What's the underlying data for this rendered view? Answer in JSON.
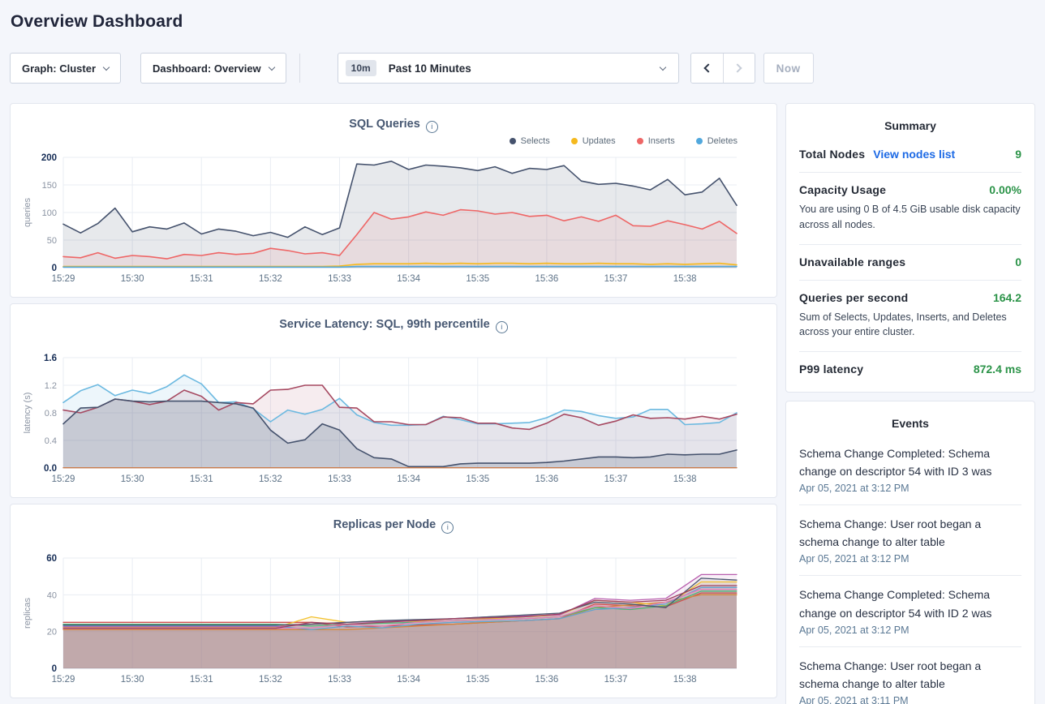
{
  "page": {
    "title": "Overview Dashboard"
  },
  "toolbar": {
    "graph_selector": "Graph: Cluster",
    "dashboard_selector": "Dashboard: Overview",
    "time_badge": "10m",
    "time_label": "Past 10 Minutes",
    "now_label": "Now"
  },
  "summary": {
    "title": "Summary",
    "rows": [
      {
        "label": "Total Nodes",
        "link": "View nodes list",
        "value": "9"
      },
      {
        "label": "Capacity Usage",
        "value": "0.00%",
        "desc": "You are using 0 B of 4.5 GiB usable disk capacity across all nodes."
      },
      {
        "label": "Unavailable ranges",
        "value": "0"
      },
      {
        "label": "Queries per second",
        "value": "164.2",
        "desc": "Sum of Selects, Updates, Inserts, and Deletes across your entire cluster."
      },
      {
        "label": "P99 latency",
        "value": "872.4 ms"
      }
    ]
  },
  "events": {
    "title": "Events",
    "items": [
      {
        "text": "Schema Change Completed: Schema change on descriptor 54 with ID 3 was",
        "time": "Apr 05, 2021 at 3:12 PM"
      },
      {
        "text": "Schema Change: User root began a schema change to alter table",
        "time": "Apr 05, 2021 at 3:12 PM"
      },
      {
        "text": "Schema Change Completed: Schema change on descriptor 54 with ID 2 was",
        "time": "Apr 05, 2021 at 3:12 PM"
      },
      {
        "text": "Schema Change: User root began a schema change to alter table",
        "time": "Apr 05, 2021 at 3:11 PM"
      }
    ]
  },
  "colors": {
    "accent_green": "#2b9348",
    "link_blue": "#1d6ae5",
    "selects_navy": "#45526d",
    "updates_yellow": "#f5b91e",
    "inserts_red": "#ee6666",
    "deletes_blue": "#51a8dd"
  },
  "chart_data": [
    {
      "type": "area",
      "title": "SQL Queries",
      "ylabel": "queries",
      "ylim": [
        0,
        200
      ],
      "ytick_values": [
        0,
        50,
        100,
        150,
        200
      ],
      "ytick_labels": [
        "0",
        "50",
        "100",
        "150",
        "200"
      ],
      "categories": [
        "15:29",
        "15:30",
        "15:31",
        "15:32",
        "15:33",
        "15:34",
        "15:35",
        "15:36",
        "15:37",
        "15:38"
      ],
      "x_total": 9.75,
      "legend_position": "top-right",
      "grid": true,
      "series": [
        {
          "name": "Selects",
          "color": "#45526d",
          "fill_opacity": 0.13,
          "stroke_width": 1.6,
          "values": [
            79,
            63,
            80,
            108,
            65,
            74,
            70,
            81,
            61,
            70,
            66,
            58,
            64,
            55,
            74,
            60,
            72,
            188,
            186,
            193,
            178,
            186,
            184,
            181,
            176,
            183,
            171,
            180,
            178,
            185,
            157,
            151,
            153,
            148,
            141,
            160,
            132,
            137,
            162,
            113
          ]
        },
        {
          "name": "Updates",
          "color": "#f5b91e",
          "fill_opacity": 0.1,
          "stroke_width": 1.6,
          "values": [
            2,
            2,
            2,
            2,
            2,
            2,
            2,
            2,
            2,
            2,
            2,
            2,
            2,
            2,
            2,
            2,
            3,
            6,
            7,
            7,
            7,
            8,
            7,
            8,
            7,
            8,
            8,
            7,
            8,
            7,
            7,
            8,
            7,
            7,
            6,
            7,
            6,
            7,
            8,
            5
          ]
        },
        {
          "name": "Inserts",
          "color": "#ee6666",
          "fill_opacity": 0.1,
          "stroke_width": 1.6,
          "values": [
            20,
            18,
            27,
            17,
            22,
            20,
            16,
            24,
            22,
            27,
            24,
            26,
            35,
            31,
            25,
            27,
            22,
            60,
            100,
            88,
            92,
            101,
            95,
            105,
            103,
            97,
            100,
            93,
            95,
            85,
            92,
            84,
            95,
            76,
            75,
            85,
            78,
            70,
            84,
            62
          ]
        },
        {
          "name": "Deletes",
          "color": "#51a8dd",
          "fill_opacity": 0.1,
          "stroke_width": 1.6,
          "values": [
            1,
            1,
            1,
            1,
            1,
            1,
            1,
            1,
            1,
            1,
            1,
            1,
            1,
            1,
            1,
            1,
            1,
            2,
            2,
            2,
            2,
            2,
            2,
            2,
            2,
            2,
            2,
            2,
            2,
            2,
            2,
            2,
            2,
            2,
            2,
            2,
            2,
            2,
            2,
            2
          ]
        }
      ]
    },
    {
      "type": "area",
      "title": "Service Latency: SQL, 99th percentile",
      "ylabel": "latency (s)",
      "ylim": [
        0,
        1.6
      ],
      "ytick_values": [
        0,
        0.4,
        0.8,
        1.2,
        1.6
      ],
      "ytick_labels": [
        "0.0",
        "0.4",
        "0.8",
        "1.2",
        "1.6"
      ],
      "categories": [
        "15:29",
        "15:30",
        "15:31",
        "15:32",
        "15:33",
        "15:34",
        "15:35",
        "15:36",
        "15:37",
        "15:38"
      ],
      "x_total": 9.75,
      "legend_position": "none",
      "grid": true,
      "series": [
        {
          "name": "series-blue",
          "color": "#6cb9e0",
          "fill_opacity": 0.12,
          "stroke_width": 1.6,
          "values": [
            0.95,
            1.12,
            1.21,
            1.05,
            1.13,
            1.08,
            1.18,
            1.35,
            1.22,
            0.95,
            0.96,
            0.86,
            0.67,
            0.84,
            0.78,
            0.85,
            1.01,
            0.77,
            0.66,
            0.62,
            0.62,
            0.63,
            0.75,
            0.7,
            0.64,
            0.64,
            0.65,
            0.66,
            0.73,
            0.84,
            0.82,
            0.76,
            0.72,
            0.74,
            0.85,
            0.85,
            0.63,
            0.64,
            0.66,
            0.8
          ]
        },
        {
          "name": "series-maroon",
          "color": "#a64961",
          "fill_opacity": 0.1,
          "stroke_width": 1.6,
          "values": [
            0.84,
            0.8,
            0.88,
            1.0,
            0.97,
            0.92,
            0.97,
            1.13,
            1.04,
            0.84,
            0.95,
            0.93,
            1.13,
            1.14,
            1.2,
            1.2,
            0.88,
            0.87,
            0.67,
            0.67,
            0.63,
            0.63,
            0.74,
            0.73,
            0.65,
            0.65,
            0.58,
            0.56,
            0.65,
            0.78,
            0.73,
            0.62,
            0.68,
            0.77,
            0.72,
            0.73,
            0.71,
            0.75,
            0.71,
            0.78
          ]
        },
        {
          "name": "series-navy",
          "color": "#45526d",
          "fill_opacity": 0.18,
          "stroke_width": 1.6,
          "values": [
            0.64,
            0.87,
            0.88,
            1.0,
            0.97,
            0.96,
            0.97,
            0.97,
            0.97,
            0.95,
            0.93,
            0.87,
            0.55,
            0.36,
            0.41,
            0.64,
            0.55,
            0.28,
            0.15,
            0.13,
            0.02,
            0.02,
            0.02,
            0.06,
            0.07,
            0.07,
            0.07,
            0.07,
            0.08,
            0.1,
            0.13,
            0.16,
            0.16,
            0.15,
            0.16,
            0.2,
            0.19,
            0.2,
            0.2,
            0.26
          ]
        },
        {
          "name": "series-orange",
          "color": "#c97b4c",
          "fill_opacity": 0,
          "stroke_width": 1.4,
          "values": [
            0.004,
            0.004
          ]
        }
      ]
    },
    {
      "type": "area",
      "title": "Replicas per Node",
      "ylabel": "replicas",
      "ylim": [
        0,
        60
      ],
      "ytick_values": [
        0,
        20,
        40,
        60
      ],
      "ytick_labels": [
        "0",
        "20",
        "40",
        "60"
      ],
      "categories": [
        "15:29",
        "15:30",
        "15:31",
        "15:32",
        "15:33",
        "15:34",
        "15:35",
        "15:36",
        "15:37",
        "15:38"
      ],
      "x_total": 9.75,
      "legend_position": "none",
      "grid": true,
      "series": [
        {
          "name": "node-1",
          "color": "#cf4f4f",
          "fill_opacity": 0.1,
          "stroke_width": 1.3,
          "values": [
            25,
            25,
            25,
            25,
            25,
            25,
            25,
            25,
            22.5,
            23,
            23.5,
            24,
            25,
            26,
            27,
            35,
            34,
            33.5,
            41,
            41
          ]
        },
        {
          "name": "node-2",
          "color": "#d2883c",
          "fill_opacity": 0.1,
          "stroke_width": 1.3,
          "values": [
            21,
            21,
            21,
            21,
            21,
            21,
            21,
            21,
            21,
            22,
            23,
            24,
            25,
            26,
            27,
            33,
            34.5,
            36,
            40,
            40
          ]
        },
        {
          "name": "node-3",
          "color": "#f2c12e",
          "fill_opacity": 0.1,
          "stroke_width": 1.3,
          "values": [
            22.2,
            22.2,
            22.2,
            22.2,
            22.2,
            22.2,
            22.2,
            28,
            25,
            26,
            25.5,
            26,
            27,
            28,
            29,
            37,
            36,
            34,
            47,
            47
          ]
        },
        {
          "name": "node-4",
          "color": "#4cb577",
          "fill_opacity": 0.1,
          "stroke_width": 1.3,
          "values": [
            24,
            24,
            24,
            24,
            24,
            24,
            24,
            23,
            24,
            24.5,
            25,
            26,
            26.5,
            27,
            28,
            33,
            32,
            34,
            42,
            42
          ]
        },
        {
          "name": "node-5",
          "color": "#62a3cf",
          "fill_opacity": 0.1,
          "stroke_width": 1.3,
          "values": [
            23,
            23,
            23,
            23,
            23,
            23,
            23,
            21,
            23,
            22,
            24,
            25,
            25.5,
            26,
            27,
            32,
            33,
            35,
            44,
            44
          ]
        },
        {
          "name": "node-6",
          "color": "#b85fae",
          "fill_opacity": 0.1,
          "stroke_width": 1.3,
          "values": [
            22.6,
            22.6,
            22.6,
            22.6,
            22.6,
            22.6,
            22.6,
            24,
            25,
            25.5,
            26,
            27,
            28,
            28.5,
            29,
            38,
            37,
            38,
            51,
            51
          ]
        },
        {
          "name": "node-7",
          "color": "#e07fb8",
          "fill_opacity": 0.1,
          "stroke_width": 1.3,
          "values": [
            21.6,
            21.6,
            21.6,
            21.6,
            21.6,
            21.6,
            21.6,
            22,
            24,
            23,
            25,
            26,
            26.5,
            27,
            28,
            34,
            32.5,
            36,
            43,
            43
          ]
        },
        {
          "name": "node-8",
          "color": "#4c5870",
          "fill_opacity": 0.1,
          "stroke_width": 1.3,
          "values": [
            23.5,
            23.5,
            23.5,
            23.5,
            23.5,
            23.5,
            23.5,
            24,
            25,
            26,
            26.5,
            27,
            28,
            29,
            30,
            36,
            35,
            33,
            49,
            48
          ]
        },
        {
          "name": "node-9",
          "color": "#9e4060",
          "fill_opacity": 0.1,
          "stroke_width": 1.3,
          "values": [
            21.8,
            21.8,
            21.8,
            21.8,
            21.8,
            21.8,
            21.8,
            25,
            24,
            25,
            26,
            27,
            27.5,
            28,
            29.5,
            37,
            36,
            37,
            45,
            45
          ]
        }
      ]
    }
  ]
}
